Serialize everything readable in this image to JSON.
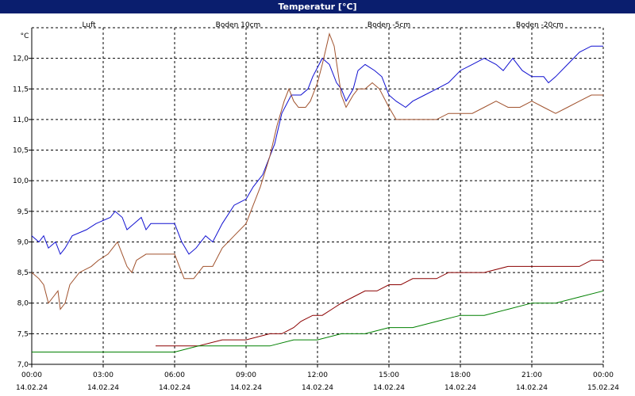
{
  "window_title": "Temperatur [°C]",
  "chart_data": {
    "type": "line",
    "title": "Temperatur [°C]",
    "y_unit": "°C",
    "ylim": [
      7.0,
      12.5
    ],
    "x_range_hours": [
      0,
      24
    ],
    "y_ticks": [
      {
        "v": 7.0,
        "label": "7,0"
      },
      {
        "v": 7.5,
        "label": "7,5"
      },
      {
        "v": 8.0,
        "label": "8,0"
      },
      {
        "v": 8.5,
        "label": "8,5"
      },
      {
        "v": 9.0,
        "label": "9,0"
      },
      {
        "v": 9.5,
        "label": "9,5"
      },
      {
        "v": 10.0,
        "label": "10,0"
      },
      {
        "v": 10.5,
        "label": "10,5"
      },
      {
        "v": 11.0,
        "label": "11,0"
      },
      {
        "v": 11.5,
        "label": "11,5"
      },
      {
        "v": 12.0,
        "label": "12,0"
      }
    ],
    "x_ticks": [
      {
        "h": 0,
        "time": "00:00",
        "date": "14.02.24"
      },
      {
        "h": 3,
        "time": "03:00",
        "date": "14.02.24"
      },
      {
        "h": 6,
        "time": "06:00",
        "date": "14.02.24"
      },
      {
        "h": 9,
        "time": "09:00",
        "date": "14.02.24"
      },
      {
        "h": 12,
        "time": "12:00",
        "date": "14.02.24"
      },
      {
        "h": 15,
        "time": "15:00",
        "date": "14.02.24"
      },
      {
        "h": 18,
        "time": "18:00",
        "date": "14.02.24"
      },
      {
        "h": 21,
        "time": "21:00",
        "date": "14.02.24"
      },
      {
        "h": 24,
        "time": "00:00",
        "date": "15.02.24"
      }
    ],
    "grid": true,
    "series": [
      {
        "name": "Luft",
        "color": "#1010d0",
        "points": [
          [
            0,
            9.1
          ],
          [
            0.3,
            9.0
          ],
          [
            0.5,
            9.1
          ],
          [
            0.7,
            8.9
          ],
          [
            1.0,
            9.0
          ],
          [
            1.2,
            8.8
          ],
          [
            1.4,
            8.9
          ],
          [
            1.7,
            9.1
          ],
          [
            2.3,
            9.2
          ],
          [
            2.7,
            9.3
          ],
          [
            3.3,
            9.4
          ],
          [
            3.5,
            9.5
          ],
          [
            3.8,
            9.4
          ],
          [
            4.0,
            9.2
          ],
          [
            4.3,
            9.3
          ],
          [
            4.6,
            9.4
          ],
          [
            4.8,
            9.2
          ],
          [
            5.0,
            9.3
          ],
          [
            5.5,
            9.3
          ],
          [
            6.0,
            9.3
          ],
          [
            6.3,
            9.0
          ],
          [
            6.6,
            8.8
          ],
          [
            6.9,
            8.9
          ],
          [
            7.3,
            9.1
          ],
          [
            7.6,
            9.0
          ],
          [
            8.0,
            9.3
          ],
          [
            8.5,
            9.6
          ],
          [
            9.0,
            9.7
          ],
          [
            9.3,
            9.9
          ],
          [
            9.7,
            10.1
          ],
          [
            10.2,
            10.6
          ],
          [
            10.5,
            11.1
          ],
          [
            10.9,
            11.4
          ],
          [
            11.3,
            11.4
          ],
          [
            11.6,
            11.5
          ],
          [
            11.8,
            11.7
          ],
          [
            12.2,
            12.0
          ],
          [
            12.5,
            11.9
          ],
          [
            12.8,
            11.6
          ],
          [
            13.0,
            11.5
          ],
          [
            13.2,
            11.3
          ],
          [
            13.5,
            11.5
          ],
          [
            13.7,
            11.8
          ],
          [
            14.0,
            11.9
          ],
          [
            14.4,
            11.8
          ],
          [
            14.7,
            11.7
          ],
          [
            15.0,
            11.4
          ],
          [
            15.3,
            11.3
          ],
          [
            15.7,
            11.2
          ],
          [
            16.0,
            11.3
          ],
          [
            16.5,
            11.4
          ],
          [
            17.0,
            11.5
          ],
          [
            17.5,
            11.6
          ],
          [
            18.0,
            11.8
          ],
          [
            18.5,
            11.9
          ],
          [
            19.0,
            12.0
          ],
          [
            19.5,
            11.9
          ],
          [
            19.8,
            11.8
          ],
          [
            20.2,
            12.0
          ],
          [
            20.6,
            11.8
          ],
          [
            21.0,
            11.7
          ],
          [
            21.5,
            11.7
          ],
          [
            21.7,
            11.6
          ],
          [
            22.0,
            11.7
          ],
          [
            22.5,
            11.9
          ],
          [
            23.0,
            12.1
          ],
          [
            23.5,
            12.2
          ],
          [
            24.0,
            12.2
          ]
        ]
      },
      {
        "name": "Boden 10cm",
        "color": "#a0522d",
        "points": [
          [
            0,
            8.5
          ],
          [
            0.3,
            8.4
          ],
          [
            0.5,
            8.3
          ],
          [
            0.7,
            8.0
          ],
          [
            0.9,
            8.1
          ],
          [
            1.1,
            8.2
          ],
          [
            1.2,
            7.9
          ],
          [
            1.4,
            8.0
          ],
          [
            1.6,
            8.3
          ],
          [
            2.0,
            8.5
          ],
          [
            2.5,
            8.6
          ],
          [
            2.8,
            8.7
          ],
          [
            3.2,
            8.8
          ],
          [
            3.4,
            8.9
          ],
          [
            3.6,
            9.0
          ],
          [
            3.8,
            8.8
          ],
          [
            4.0,
            8.6
          ],
          [
            4.2,
            8.5
          ],
          [
            4.4,
            8.7
          ],
          [
            4.8,
            8.8
          ],
          [
            5.2,
            8.8
          ],
          [
            5.7,
            8.8
          ],
          [
            6.0,
            8.8
          ],
          [
            6.2,
            8.6
          ],
          [
            6.4,
            8.4
          ],
          [
            6.8,
            8.4
          ],
          [
            7.2,
            8.6
          ],
          [
            7.6,
            8.6
          ],
          [
            8.0,
            8.9
          ],
          [
            8.5,
            9.1
          ],
          [
            9.0,
            9.3
          ],
          [
            9.3,
            9.6
          ],
          [
            9.6,
            9.9
          ],
          [
            10.0,
            10.4
          ],
          [
            10.3,
            10.9
          ],
          [
            10.6,
            11.3
          ],
          [
            10.8,
            11.5
          ],
          [
            11.0,
            11.3
          ],
          [
            11.2,
            11.2
          ],
          [
            11.5,
            11.2
          ],
          [
            11.7,
            11.3
          ],
          [
            12.0,
            11.6
          ],
          [
            12.2,
            11.9
          ],
          [
            12.5,
            12.4
          ],
          [
            12.7,
            12.2
          ],
          [
            13.0,
            11.4
          ],
          [
            13.2,
            11.2
          ],
          [
            13.5,
            11.4
          ],
          [
            13.7,
            11.5
          ],
          [
            14.0,
            11.5
          ],
          [
            14.3,
            11.6
          ],
          [
            14.6,
            11.5
          ],
          [
            15.0,
            11.2
          ],
          [
            15.3,
            11.0
          ],
          [
            15.6,
            11.0
          ],
          [
            16.0,
            11.0
          ],
          [
            16.5,
            11.0
          ],
          [
            17.0,
            11.0
          ],
          [
            17.5,
            11.1
          ],
          [
            18.0,
            11.1
          ],
          [
            18.5,
            11.1
          ],
          [
            19.0,
            11.2
          ],
          [
            19.5,
            11.3
          ],
          [
            20.0,
            11.2
          ],
          [
            20.5,
            11.2
          ],
          [
            21.0,
            11.3
          ],
          [
            21.5,
            11.2
          ],
          [
            22.0,
            11.1
          ],
          [
            22.5,
            11.2
          ],
          [
            23.0,
            11.3
          ],
          [
            23.5,
            11.4
          ],
          [
            24.0,
            11.4
          ]
        ]
      },
      {
        "name": "Boden -5cm",
        "color": "#8b0000",
        "points": [
          [
            5.2,
            7.3
          ],
          [
            6.5,
            7.3
          ],
          [
            7.0,
            7.3
          ],
          [
            8.0,
            7.4
          ],
          [
            9.0,
            7.4
          ],
          [
            10.0,
            7.5
          ],
          [
            10.5,
            7.5
          ],
          [
            11.0,
            7.6
          ],
          [
            11.3,
            7.7
          ],
          [
            11.8,
            7.8
          ],
          [
            12.2,
            7.8
          ],
          [
            12.6,
            7.9
          ],
          [
            13.0,
            8.0
          ],
          [
            13.5,
            8.1
          ],
          [
            14.0,
            8.2
          ],
          [
            14.5,
            8.2
          ],
          [
            15.0,
            8.3
          ],
          [
            15.5,
            8.3
          ],
          [
            16.0,
            8.4
          ],
          [
            16.5,
            8.4
          ],
          [
            17.0,
            8.4
          ],
          [
            17.5,
            8.5
          ],
          [
            18.0,
            8.5
          ],
          [
            19.0,
            8.5
          ],
          [
            20.0,
            8.6
          ],
          [
            21.0,
            8.6
          ],
          [
            22.0,
            8.6
          ],
          [
            23.0,
            8.6
          ],
          [
            23.5,
            8.7
          ],
          [
            24.0,
            8.7
          ]
        ]
      },
      {
        "name": "Boden -20cm",
        "color": "#008000",
        "points": [
          [
            0,
            7.2
          ],
          [
            1.5,
            7.2
          ],
          [
            3.0,
            7.2
          ],
          [
            4.5,
            7.2
          ],
          [
            6.0,
            7.2
          ],
          [
            7.0,
            7.3
          ],
          [
            8.0,
            7.3
          ],
          [
            9.0,
            7.3
          ],
          [
            10.0,
            7.3
          ],
          [
            11.0,
            7.4
          ],
          [
            12.0,
            7.4
          ],
          [
            13.0,
            7.5
          ],
          [
            14.0,
            7.5
          ],
          [
            15.0,
            7.6
          ],
          [
            16.0,
            7.6
          ],
          [
            17.0,
            7.7
          ],
          [
            18.0,
            7.8
          ],
          [
            19.0,
            7.8
          ],
          [
            20.0,
            7.9
          ],
          [
            21.0,
            8.0
          ],
          [
            22.0,
            8.0
          ],
          [
            23.0,
            8.1
          ],
          [
            24.0,
            8.2
          ]
        ]
      }
    ]
  }
}
